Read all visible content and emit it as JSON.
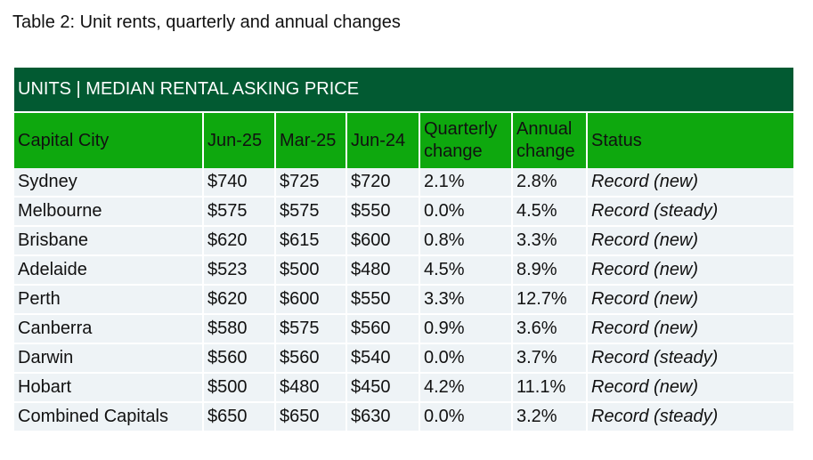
{
  "caption": "Table 2: Unit rents, quarterly and annual changes",
  "table": {
    "banner": "UNITS | MEDIAN RENTAL ASKING PRICE",
    "headers": [
      "Capital City",
      "Jun-25",
      "Mar-25",
      "Jun-24",
      "Quarterly change",
      "Annual change",
      "Status"
    ],
    "rows": [
      [
        "Sydney",
        "$740",
        "$725",
        "$720",
        "2.1%",
        "2.8%",
        "Record (new)"
      ],
      [
        "Melbourne",
        "$575",
        "$575",
        "$550",
        "0.0%",
        "4.5%",
        "Record (steady)"
      ],
      [
        "Brisbane",
        "$620",
        "$615",
        "$600",
        "0.8%",
        "3.3%",
        "Record (new)"
      ],
      [
        "Adelaide",
        "$523",
        "$500",
        "$480",
        "4.5%",
        "8.9%",
        "Record (new)"
      ],
      [
        "Perth",
        "$620",
        "$600",
        "$550",
        "3.3%",
        "12.7%",
        "Record (new)"
      ],
      [
        "Canberra",
        "$580",
        "$575",
        "$560",
        "0.9%",
        "3.6%",
        "Record (new)"
      ],
      [
        "Darwin",
        "$560",
        "$560",
        "$540",
        "0.0%",
        "3.7%",
        "Record (steady)"
      ],
      [
        "Hobart",
        "$500",
        "$480",
        "$450",
        "4.2%",
        "11.1%",
        "Record (new)"
      ],
      [
        "Combined Capitals",
        "$650",
        "$650",
        "$630",
        "0.0%",
        "3.2%",
        "Record (steady)"
      ]
    ]
  }
}
